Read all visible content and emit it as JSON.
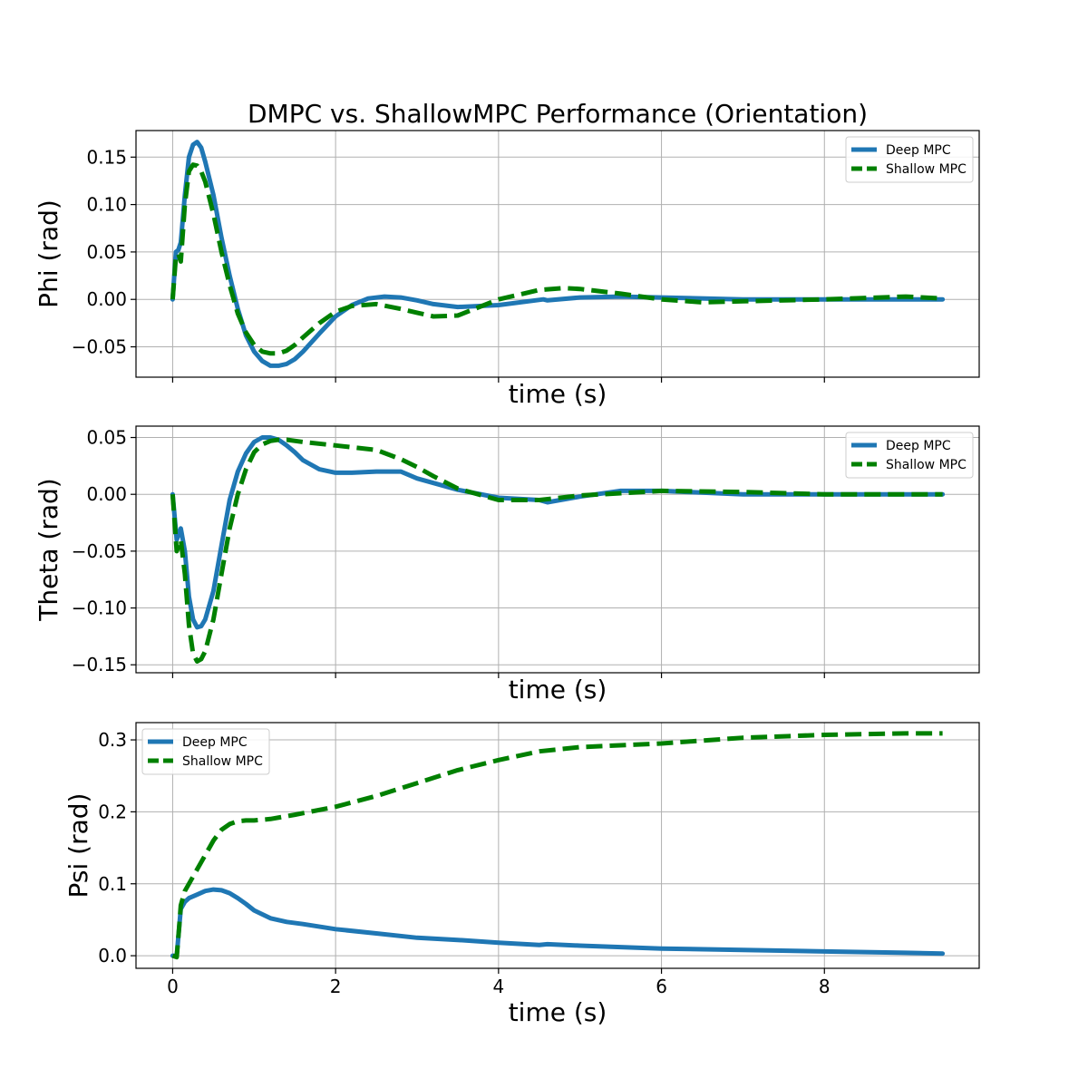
{
  "figure_title": "DMPC vs. ShallowMPC Performance (Orientation)",
  "colors": {
    "deep": "#1f77b4",
    "shallow": "#008000"
  },
  "chart_data": [
    {
      "type": "line",
      "ylabel": "Phi (rad)",
      "xlabel": "time (s)",
      "xlim": [
        -0.45,
        9.9
      ],
      "ylim": [
        -0.082,
        0.178
      ],
      "xticks": [
        0,
        2,
        4,
        6,
        8
      ],
      "show_xtick_labels": false,
      "yticks": [
        -0.05,
        0.0,
        0.05,
        0.1,
        0.15
      ],
      "ytick_labels": [
        "−0.05",
        "0.00",
        "0.05",
        "0.10",
        "0.15"
      ],
      "grid": true,
      "legend_position": "top-right",
      "series": [
        {
          "name": "Deep MPC",
          "style": "solid",
          "color": "#1f77b4",
          "x": [
            0,
            0.04,
            0.07,
            0.1,
            0.15,
            0.2,
            0.25,
            0.3,
            0.35,
            0.4,
            0.5,
            0.6,
            0.7,
            0.8,
            0.9,
            1.0,
            1.1,
            1.2,
            1.3,
            1.4,
            1.5,
            1.6,
            1.8,
            2.0,
            2.2,
            2.4,
            2.6,
            2.8,
            3.0,
            3.2,
            3.5,
            4.0,
            4.55,
            4.6,
            5.0,
            5.5,
            6.0,
            7.0,
            8.0,
            9.0,
            9.45
          ],
          "y": [
            0.0,
            0.05,
            0.052,
            0.06,
            0.11,
            0.15,
            0.163,
            0.166,
            0.16,
            0.145,
            0.11,
            0.065,
            0.025,
            -0.01,
            -0.038,
            -0.055,
            -0.065,
            -0.07,
            -0.07,
            -0.068,
            -0.063,
            -0.055,
            -0.036,
            -0.018,
            -0.006,
            0.001,
            0.003,
            0.002,
            -0.001,
            -0.005,
            -0.008,
            -0.006,
            0.0,
            -0.001,
            0.002,
            0.003,
            0.002,
            0.0,
            0.0,
            0.0,
            0.0
          ]
        },
        {
          "name": "Shallow MPC",
          "style": "dashed",
          "color": "#008000",
          "x": [
            0,
            0.04,
            0.07,
            0.1,
            0.15,
            0.2,
            0.25,
            0.3,
            0.35,
            0.4,
            0.5,
            0.6,
            0.7,
            0.8,
            0.9,
            1.0,
            1.1,
            1.2,
            1.3,
            1.4,
            1.5,
            1.6,
            1.8,
            2.0,
            2.2,
            2.5,
            2.8,
            3.0,
            3.2,
            3.5,
            4.0,
            4.5,
            4.8,
            5.0,
            5.5,
            6.0,
            6.5,
            7.0,
            8.0,
            9.0,
            9.45
          ],
          "y": [
            0.0,
            0.045,
            0.048,
            0.04,
            0.1,
            0.135,
            0.142,
            0.141,
            0.135,
            0.124,
            0.09,
            0.05,
            0.015,
            -0.015,
            -0.035,
            -0.048,
            -0.055,
            -0.057,
            -0.057,
            -0.054,
            -0.048,
            -0.04,
            -0.025,
            -0.013,
            -0.007,
            -0.005,
            -0.01,
            -0.014,
            -0.018,
            -0.017,
            0.0,
            0.01,
            0.012,
            0.011,
            0.006,
            0.0,
            -0.003,
            -0.002,
            0.0,
            0.003,
            0.001
          ]
        }
      ]
    },
    {
      "type": "line",
      "ylabel": "Theta (rad)",
      "xlabel": "time (s)",
      "xlim": [
        -0.45,
        9.9
      ],
      "ylim": [
        -0.157,
        0.06
      ],
      "xticks": [
        0,
        2,
        4,
        6,
        8
      ],
      "show_xtick_labels": false,
      "yticks": [
        -0.15,
        -0.1,
        -0.05,
        0.0,
        0.05
      ],
      "ytick_labels": [
        "−0.15",
        "−0.10",
        "−0.05",
        "0.00",
        "0.05"
      ],
      "grid": true,
      "legend_position": "top-right",
      "series": [
        {
          "name": "Deep MPC",
          "style": "solid",
          "color": "#1f77b4",
          "x": [
            0,
            0.05,
            0.1,
            0.15,
            0.2,
            0.25,
            0.3,
            0.35,
            0.4,
            0.5,
            0.6,
            0.7,
            0.8,
            0.9,
            1.0,
            1.1,
            1.2,
            1.3,
            1.4,
            1.5,
            1.6,
            1.8,
            2.0,
            2.2,
            2.5,
            2.8,
            3.0,
            3.2,
            3.5,
            4.0,
            4.5,
            4.6,
            5.0,
            5.5,
            6.0,
            7.0,
            8.0,
            9.0,
            9.45
          ],
          "y": [
            0.0,
            -0.04,
            -0.03,
            -0.05,
            -0.09,
            -0.11,
            -0.117,
            -0.116,
            -0.11,
            -0.085,
            -0.045,
            -0.005,
            0.02,
            0.036,
            0.046,
            0.05,
            0.05,
            0.048,
            0.043,
            0.037,
            0.03,
            0.022,
            0.019,
            0.019,
            0.02,
            0.02,
            0.014,
            0.01,
            0.004,
            -0.003,
            -0.005,
            -0.007,
            -0.002,
            0.003,
            0.003,
            0.0,
            0.0,
            0.0,
            0.0
          ]
        },
        {
          "name": "Shallow MPC",
          "style": "dashed",
          "color": "#008000",
          "x": [
            0,
            0.05,
            0.1,
            0.15,
            0.2,
            0.25,
            0.3,
            0.35,
            0.4,
            0.5,
            0.6,
            0.7,
            0.8,
            0.9,
            1.0,
            1.1,
            1.2,
            1.3,
            1.4,
            1.6,
            2.0,
            2.5,
            2.8,
            3.0,
            3.2,
            3.5,
            4.0,
            4.5,
            5.0,
            5.5,
            6.0,
            7.0,
            8.0,
            9.0,
            9.45
          ],
          "y": [
            0.0,
            -0.05,
            -0.04,
            -0.07,
            -0.115,
            -0.14,
            -0.147,
            -0.145,
            -0.138,
            -0.11,
            -0.07,
            -0.03,
            0.0,
            0.022,
            0.037,
            0.044,
            0.047,
            0.048,
            0.048,
            0.046,
            0.043,
            0.039,
            0.031,
            0.024,
            0.016,
            0.005,
            -0.005,
            -0.005,
            -0.001,
            0.001,
            0.003,
            0.002,
            0.0,
            0.0,
            0.0
          ]
        }
      ]
    },
    {
      "type": "line",
      "ylabel": "Psi (rad)",
      "xlabel": "time (s)",
      "xlim": [
        -0.45,
        9.9
      ],
      "ylim": [
        -0.0175,
        0.324
      ],
      "xticks": [
        0,
        2,
        4,
        6,
        8
      ],
      "show_xtick_labels": true,
      "xtick_labels": [
        "0",
        "2",
        "4",
        "6",
        "8"
      ],
      "yticks": [
        0.0,
        0.1,
        0.2,
        0.3
      ],
      "ytick_labels": [
        "0.0",
        "0.1",
        "0.2",
        "0.3"
      ],
      "grid": true,
      "legend_position": "top-left",
      "series": [
        {
          "name": "Deep MPC",
          "style": "solid",
          "color": "#1f77b4",
          "x": [
            0,
            0.05,
            0.1,
            0.15,
            0.2,
            0.3,
            0.4,
            0.5,
            0.6,
            0.7,
            0.8,
            0.9,
            1.0,
            1.2,
            1.4,
            1.6,
            2.0,
            2.5,
            3.0,
            3.5,
            4.0,
            4.5,
            4.6,
            5.0,
            6.0,
            7.0,
            8.0,
            9.0,
            9.45
          ],
          "y": [
            0.0,
            0.0,
            0.065,
            0.075,
            0.08,
            0.085,
            0.09,
            0.092,
            0.091,
            0.087,
            0.08,
            0.072,
            0.063,
            0.052,
            0.047,
            0.044,
            0.037,
            0.031,
            0.025,
            0.022,
            0.018,
            0.015,
            0.016,
            0.014,
            0.01,
            0.008,
            0.006,
            0.004,
            0.003
          ]
        },
        {
          "name": "Shallow MPC",
          "style": "dashed",
          "color": "#008000",
          "x": [
            0,
            0.05,
            0.08,
            0.1,
            0.15,
            0.2,
            0.3,
            0.4,
            0.5,
            0.6,
            0.7,
            0.8,
            0.9,
            1.0,
            1.2,
            1.5,
            2.0,
            2.5,
            3.0,
            3.5,
            4.0,
            4.5,
            5.0,
            6.0,
            7.0,
            8.0,
            9.0,
            9.45
          ],
          "y": [
            0.0,
            -0.002,
            0.04,
            0.07,
            0.09,
            0.1,
            0.12,
            0.14,
            0.16,
            0.175,
            0.183,
            0.187,
            0.188,
            0.188,
            0.19,
            0.196,
            0.207,
            0.222,
            0.24,
            0.258,
            0.272,
            0.284,
            0.29,
            0.295,
            0.303,
            0.307,
            0.309,
            0.309
          ]
        }
      ]
    }
  ]
}
